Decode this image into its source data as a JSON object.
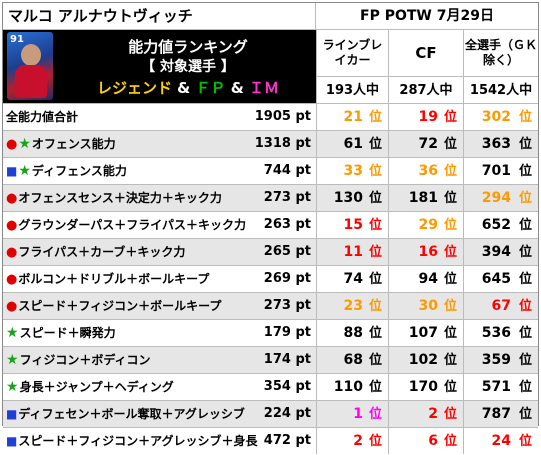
{
  "player": {
    "name": "マルコ アルナウトヴィッチ",
    "rating": "91"
  },
  "event": "FP POTW 7月29日",
  "banner": {
    "line1": "能力値ランキング",
    "line2": "【 対象選手 】",
    "legend": "レジェンド",
    "amp1": " & ",
    "fp": "ＦＰ",
    "amp2": " & ",
    "im": "ＩＭ"
  },
  "columns": [
    {
      "label": "ラインブレイカー",
      "count": "193人中"
    },
    {
      "label": "CF",
      "count": "287人中"
    },
    {
      "label": "全選手（ＧＫ除く）",
      "count": "1542人中"
    }
  ],
  "unit_pt": "pt",
  "unit_rank": "位",
  "colors": {
    "top1": "#ff00ff",
    "top10": "#ff0000",
    "top50": "#ff9900"
  },
  "rows": [
    {
      "label": "全能力値合計",
      "mark": "",
      "total": "1905",
      "ranks": [
        "21",
        "19",
        "302"
      ],
      "tiers": [
        "o",
        "r",
        "o"
      ]
    },
    {
      "label": "オフェンス能力",
      "mark": "red-star",
      "total": "1318",
      "ranks": [
        "61",
        "72",
        "363"
      ],
      "tiers": [
        "",
        "",
        ""
      ]
    },
    {
      "label": "ディフェンス能力",
      "mark": "sq-star",
      "total": "744",
      "ranks": [
        "33",
        "36",
        "701"
      ],
      "tiers": [
        "o",
        "o",
        ""
      ]
    },
    {
      "label": "オフェンスセンス＋決定力＋キック力",
      "mark": "red",
      "total": "273",
      "ranks": [
        "130",
        "181",
        "294"
      ],
      "tiers": [
        "",
        "",
        "o"
      ]
    },
    {
      "label": "グラウンダーパス＋フライパス＋キック力",
      "mark": "red",
      "total": "263",
      "ranks": [
        "15",
        "29",
        "652"
      ],
      "tiers": [
        "r",
        "o",
        ""
      ]
    },
    {
      "label": "フライパス＋カーブ＋キック力",
      "mark": "red",
      "total": "265",
      "ranks": [
        "11",
        "16",
        "394"
      ],
      "tiers": [
        "r",
        "r",
        ""
      ]
    },
    {
      "label": "ボルコン＋ドリブル＋ボールキープ",
      "mark": "red",
      "total": "269",
      "ranks": [
        "74",
        "94",
        "645"
      ],
      "tiers": [
        "",
        "",
        ""
      ]
    },
    {
      "label": "スピード＋フィジコン＋ボールキープ",
      "mark": "red",
      "total": "273",
      "ranks": [
        "23",
        "30",
        "67"
      ],
      "tiers": [
        "o",
        "o",
        "r"
      ]
    },
    {
      "label": "スピード＋瞬発力",
      "mark": "star",
      "total": "179",
      "ranks": [
        "88",
        "107",
        "536"
      ],
      "tiers": [
        "",
        "",
        ""
      ]
    },
    {
      "label": "フィジコン＋ボディコン",
      "mark": "star",
      "total": "174",
      "ranks": [
        "68",
        "102",
        "359"
      ],
      "tiers": [
        "",
        "",
        ""
      ]
    },
    {
      "label": "身長＋ジャンプ＋ヘディング",
      "mark": "star",
      "total": "354",
      "ranks": [
        "110",
        "170",
        "571"
      ],
      "tiers": [
        "",
        "",
        ""
      ]
    },
    {
      "label": "ディフェセン＋ボール奪取＋アグレッシブ",
      "mark": "sq",
      "total": "224",
      "ranks": [
        "1",
        "2",
        "787"
      ],
      "tiers": [
        "m",
        "r",
        ""
      ]
    },
    {
      "label": "スピード＋フィジコン＋アグレッシブ＋身長",
      "mark": "sq",
      "total": "472",
      "ranks": [
        "2",
        "6",
        "24"
      ],
      "tiers": [
        "r",
        "r",
        "r"
      ]
    }
  ]
}
